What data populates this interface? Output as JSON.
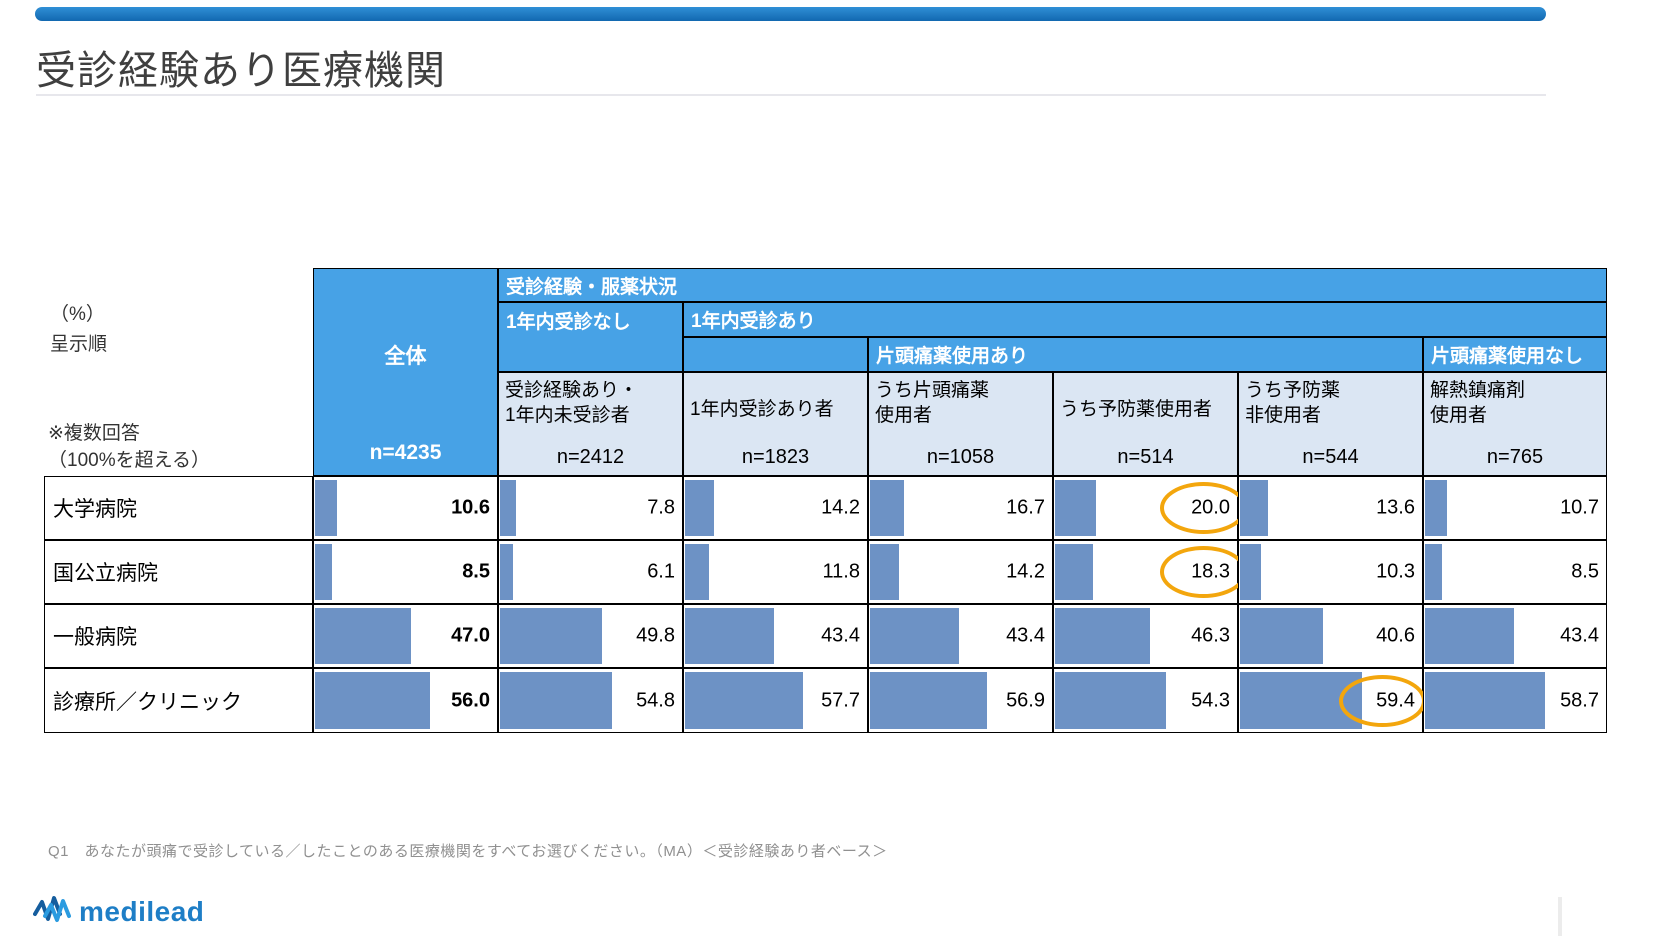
{
  "slide": {
    "title": "受診経験あり医療機関",
    "notes": {
      "percent_label": "（%）",
      "order_label": "呈示順",
      "multi_note_line1": "※複数回答",
      "multi_note_line2": "（100%を超える）"
    },
    "question_note": "Q1　あなたが頭痛で受診している／したことのある医療機関をすべてお選びください。（MA）＜受診経験あり者ベース＞",
    "logo_text": "medilead"
  },
  "table": {
    "header": {
      "group_top": "受診経験・服薬状況",
      "no_visit_1y": "1年内受診なし",
      "visit_1y": "1年内受診あり",
      "migraine_med_yes": "片頭痛薬使用あり",
      "migraine_med_no": "片頭痛薬使用なし",
      "overall_label": "全体",
      "overall_n": "n=4235"
    },
    "columns": [
      {
        "label1": "受診経験あり・",
        "label2": "1年内未受診者",
        "n": "n=2412"
      },
      {
        "label1": "1年内受診あり者",
        "label2": "",
        "n": "n=1823"
      },
      {
        "label1": "うち片頭痛薬",
        "label2": "使用者",
        "n": "n=1058"
      },
      {
        "label1": "うち予防薬使用者",
        "label2": "",
        "n": "n=514"
      },
      {
        "label1": "うち予防薬",
        "label2": "非使用者",
        "n": "n=544"
      },
      {
        "label1": "解熱鎮痛剤",
        "label2": "使用者",
        "n": "n=765"
      }
    ],
    "rows": [
      {
        "label": "大学病院",
        "values": [
          "10.6",
          "7.8",
          "14.2",
          "16.7",
          "20.0",
          "13.6",
          "10.7"
        ]
      },
      {
        "label": "国公立病院",
        "values": [
          "8.5",
          "6.1",
          "11.8",
          "14.2",
          "18.3",
          "10.3",
          "8.5"
        ]
      },
      {
        "label": "一般病院",
        "values": [
          "47.0",
          "49.8",
          "43.4",
          "43.4",
          "46.3",
          "40.6",
          "43.4"
        ]
      },
      {
        "label": "診療所／クリニック",
        "values": [
          "56.0",
          "54.8",
          "57.7",
          "56.9",
          "54.3",
          "59.4",
          "58.7"
        ]
      }
    ]
  },
  "chart_data": {
    "type": "bar",
    "title": "受診経験あり医療機関",
    "value_unit": "%",
    "note": "複数回答（100%を超える）",
    "categories": [
      "大学病院",
      "国公立病院",
      "一般病院",
      "診療所／クリニック"
    ],
    "series": [
      {
        "name": "全体",
        "n": 4235,
        "values": [
          10.6,
          8.5,
          47.0,
          56.0
        ]
      },
      {
        "name": "受診経験あり・1年内未受診者",
        "n": 2412,
        "values": [
          7.8,
          6.1,
          49.8,
          54.8
        ]
      },
      {
        "name": "1年内受診あり者",
        "n": 1823,
        "values": [
          14.2,
          11.8,
          43.4,
          57.7
        ]
      },
      {
        "name": "うち片頭痛薬使用者",
        "n": 1058,
        "values": [
          16.7,
          14.2,
          43.4,
          56.9
        ]
      },
      {
        "name": "うち予防薬使用者",
        "n": 514,
        "values": [
          20.0,
          18.3,
          46.3,
          54.3
        ]
      },
      {
        "name": "うち予防薬非使用者",
        "n": 544,
        "values": [
          13.6,
          10.3,
          40.6,
          59.4
        ]
      },
      {
        "name": "解熱鎮痛剤使用者",
        "n": 765,
        "values": [
          10.7,
          8.5,
          43.4,
          58.7
        ]
      }
    ],
    "highlights": [
      {
        "series": "うち予防薬使用者",
        "category": "大学病院",
        "value": 20.0
      },
      {
        "series": "うち予防薬使用者",
        "category": "国公立病院",
        "value": 18.3
      },
      {
        "series": "うち予防薬非使用者",
        "category": "診療所／クリニック",
        "value": 59.4
      }
    ]
  },
  "colors": {
    "header_blue": "#47a2e6",
    "subheader_blue": "#dbe6f3",
    "bar_blue": "#6d92c5",
    "highlight_orange": "#f3a60d",
    "accent_bar": "#1268b0"
  }
}
